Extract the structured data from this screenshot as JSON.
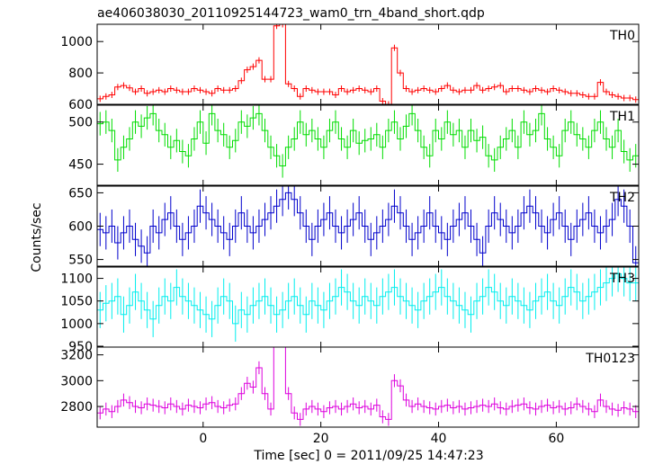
{
  "title": "ae406038030_20110925144723_wam0_trn_4band_short.qdp",
  "xlabel": "Time [sec] 0 = 2011/09/25 14:47:23",
  "ylabel": "Counts/sec",
  "chart_data": {
    "type": "line",
    "style": "step-with-error-bars",
    "title": "ae406038030_20110925144723_wam0_trn_4band_short.qdp",
    "xlabel": "Time [sec] 0 = 2011/09/25 14:47:23",
    "ylabel": "Counts/sec",
    "x_range": [
      -18,
      74
    ],
    "x_ticks": [
      0,
      20,
      40,
      60
    ],
    "bin_width": 1,
    "x_start": -17.5,
    "grid": false,
    "panels": [
      {
        "name": "TH0",
        "color": "#ff0000",
        "ylim": [
          600,
          1110
        ],
        "y_ticks": [
          600,
          800,
          1000
        ],
        "error": 20,
        "values": [
          635,
          650,
          660,
          710,
          720,
          705,
          680,
          700,
          670,
          680,
          690,
          680,
          700,
          690,
          680,
          680,
          700,
          690,
          680,
          670,
          700,
          690,
          690,
          700,
          750,
          820,
          840,
          880,
          760,
          760,
          1100,
          1110,
          730,
          700,
          650,
          700,
          690,
          680,
          680,
          680,
          660,
          700,
          680,
          690,
          700,
          690,
          680,
          700,
          620,
          600,
          960,
          800,
          700,
          680,
          690,
          700,
          690,
          680,
          700,
          720,
          690,
          680,
          690,
          690,
          720,
          690,
          700,
          710,
          720,
          680,
          700,
          700,
          690,
          680,
          700,
          690,
          680,
          700,
          690,
          680,
          670,
          670,
          660,
          650,
          650,
          740,
          680,
          660,
          650,
          640,
          640,
          630
        ]
      },
      {
        "name": "TH1",
        "color": "#00dd00",
        "ylim": [
          425,
          520
        ],
        "y_ticks": [
          450,
          500
        ],
        "error": 14,
        "values": [
          498,
          500,
          490,
          455,
          470,
          480,
          500,
          495,
          505,
          510,
          490,
          485,
          470,
          478,
          465,
          460,
          480,
          500,
          475,
          510,
          490,
          485,
          470,
          478,
          500,
          495,
          505,
          510,
          490,
          470,
          460,
          448,
          470,
          480,
          500,
          485,
          490,
          480,
          470,
          490,
          500,
          480,
          470,
          490,
          475,
          478,
          480,
          485,
          470,
          490,
          500,
          480,
          495,
          510,
          490,
          470,
          460,
          490,
          480,
          500,
          485,
          490,
          470,
          490,
          478,
          482,
          460,
          455,
          470,
          480,
          490,
          470,
          500,
          485,
          490,
          510,
          480,
          470,
          460,
          490,
          500,
          485,
          480,
          470,
          490,
          500,
          480,
          470,
          490,
          465,
          455,
          460
        ]
      },
      {
        "name": "TH2",
        "color": "#0000cc",
        "ylim": [
          540,
          660
        ],
        "y_ticks": [
          550,
          600,
          650
        ],
        "error": 25,
        "values": [
          595,
          590,
          600,
          575,
          590,
          600,
          580,
          570,
          560,
          600,
          590,
          610,
          620,
          600,
          580,
          590,
          600,
          630,
          620,
          610,
          600,
          590,
          580,
          600,
          620,
          600,
          590,
          600,
          610,
          620,
          630,
          640,
          650,
          640,
          620,
          600,
          580,
          600,
          610,
          620,
          600,
          590,
          600,
          610,
          620,
          600,
          580,
          590,
          600,
          610,
          630,
          620,
          600,
          580,
          590,
          600,
          620,
          600,
          590,
          580,
          600,
          610,
          620,
          600,
          580,
          560,
          600,
          620,
          610,
          600,
          590,
          600,
          620,
          630,
          620,
          600,
          590,
          610,
          620,
          600,
          580,
          600,
          610,
          620,
          600,
          590,
          600,
          610,
          640,
          630,
          600,
          545
        ]
      },
      {
        "name": "TH3",
        "color": "#00eeee",
        "ylim": [
          948,
          1125
        ],
        "y_ticks": [
          950,
          1000,
          1050,
          1100
        ],
        "error": 40,
        "values": [
          1030,
          1045,
          1050,
          1060,
          1020,
          1040,
          1070,
          1050,
          1030,
          1010,
          1040,
          1060,
          1050,
          1080,
          1060,
          1050,
          1040,
          1030,
          1020,
          1010,
          1040,
          1060,
          1050,
          1000,
          1030,
          1020,
          1040,
          1050,
          1060,
          1040,
          1020,
          1030,
          1050,
          1060,
          1040,
          1020,
          1050,
          1040,
          1030,
          1050,
          1060,
          1080,
          1070,
          1050,
          1040,
          1060,
          1050,
          1040,
          1060,
          1070,
          1080,
          1060,
          1050,
          1040,
          1030,
          1050,
          1060,
          1070,
          1080,
          1060,
          1050,
          1040,
          1030,
          1020,
          1050,
          1060,
          1080,
          1070,
          1050,
          1040,
          1060,
          1050,
          1040,
          1030,
          1050,
          1060,
          1070,
          1050,
          1040,
          1060,
          1080,
          1070,
          1050,
          1060,
          1070,
          1080,
          1090,
          1100,
          1110,
          1100,
          1090,
          1090
        ]
      },
      {
        "name": "TH0123",
        "color": "#dd00dd",
        "ylim": [
          2640,
          3260
        ],
        "y_ticks": [
          2800,
          3000,
          3200
        ],
        "error": 50,
        "values": [
          2750,
          2780,
          2760,
          2800,
          2850,
          2830,
          2800,
          2790,
          2820,
          2810,
          2800,
          2790,
          2820,
          2800,
          2780,
          2810,
          2800,
          2790,
          2820,
          2830,
          2800,
          2790,
          2810,
          2820,
          2900,
          2980,
          2950,
          3100,
          2900,
          2780,
          3320,
          3330,
          2900,
          2750,
          2700,
          2780,
          2800,
          2780,
          2760,
          2790,
          2800,
          2780,
          2800,
          2820,
          2790,
          2800,
          2780,
          2810,
          2720,
          2700,
          3000,
          2960,
          2850,
          2800,
          2820,
          2800,
          2790,
          2780,
          2800,
          2810,
          2790,
          2800,
          2780,
          2790,
          2800,
          2810,
          2800,
          2820,
          2790,
          2780,
          2800,
          2810,
          2820,
          2790,
          2780,
          2800,
          2810,
          2790,
          2800,
          2780,
          2790,
          2820,
          2800,
          2780,
          2760,
          2850,
          2800,
          2780,
          2770,
          2790,
          2780,
          2760
        ]
      }
    ]
  }
}
